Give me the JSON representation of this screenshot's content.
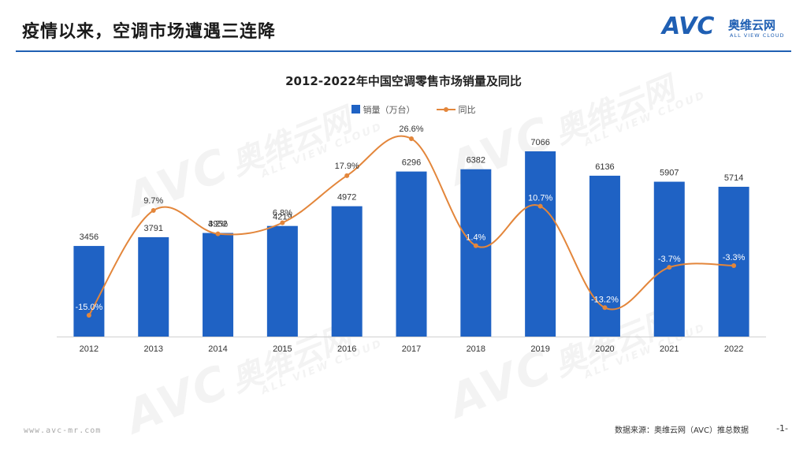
{
  "slide": {
    "title": "疫情以来，空调市场遭遇三连降",
    "logo_text": "AVC",
    "logo_cn": "奥维云网",
    "logo_en": "ALL VIEW CLOUD",
    "footer_url": "www.avc-mr.com",
    "footer_source": "数据来源：奥维云网（AVC）推总数据",
    "page_number": "-1-"
  },
  "colors": {
    "bar": "#1f62c4",
    "line": "#e3863b",
    "accent": "#1f5fb3"
  },
  "chart_data": {
    "type": "bar",
    "title": "2012-2022年中国空调零售市场销量及同比",
    "categories": [
      "2012",
      "2013",
      "2014",
      "2015",
      "2016",
      "2017",
      "2018",
      "2019",
      "2020",
      "2021",
      "2022"
    ],
    "series": [
      {
        "name": "销量（万台）",
        "type": "bar",
        "axis": "left",
        "values": [
          3456,
          3791,
          3952,
          4219,
          4972,
          6296,
          6382,
          7066,
          6136,
          5907,
          5714
        ],
        "labels": [
          "3456",
          "3791",
          "3952",
          "4219",
          "4972",
          "6296",
          "6382",
          "7066",
          "6136",
          "5907",
          "5714"
        ]
      },
      {
        "name": "同比",
        "type": "line",
        "axis": "right",
        "unit": "%",
        "values": [
          -15.0,
          9.7,
          4.2,
          6.8,
          17.9,
          26.6,
          1.4,
          10.7,
          -13.2,
          -3.7,
          -3.3
        ],
        "labels": [
          "-15.0%",
          "9.7%",
          "4.2%",
          "6.8%",
          "17.9%",
          "26.6%",
          "1.4%",
          "10.7%",
          "-13.2%",
          "-3.7%",
          "-3.3%"
        ]
      }
    ],
    "ylim_left": [
      0,
      7500
    ],
    "ylim_right": [
      -20,
      30
    ],
    "legend_position": "top-center",
    "grid": false
  }
}
